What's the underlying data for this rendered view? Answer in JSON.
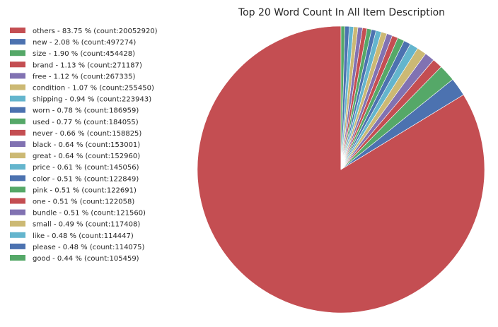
{
  "chart_data": {
    "type": "pie",
    "title": "Top 20 Word Count In All Item Description",
    "legend_position": "left",
    "start_angle_deg": 90,
    "direction": "counterclockwise",
    "slices": [
      {
        "label": "others - 83.75 % (count:20052920)",
        "percent": 83.75,
        "count": 20052920,
        "color": "#c44e52"
      },
      {
        "label": "new - 2.08 % (count:497274)",
        "percent": 2.08,
        "count": 497274,
        "color": "#4c72b0"
      },
      {
        "label": "size - 1.90 % (count:454428)",
        "percent": 1.9,
        "count": 454428,
        "color": "#55a868"
      },
      {
        "label": "brand - 1.13 % (count:271187)",
        "percent": 1.13,
        "count": 271187,
        "color": "#c44e52"
      },
      {
        "label": "free - 1.12 % (count:267335)",
        "percent": 1.12,
        "count": 267335,
        "color": "#8172b2"
      },
      {
        "label": "condition - 1.07 % (count:255450)",
        "percent": 1.07,
        "count": 255450,
        "color": "#ccb974"
      },
      {
        "label": "shipping - 0.94 % (count:223943)",
        "percent": 0.94,
        "count": 223943,
        "color": "#64b5cd"
      },
      {
        "label": "worn - 0.78 % (count:186959)",
        "percent": 0.78,
        "count": 186959,
        "color": "#4c72b0"
      },
      {
        "label": "used - 0.77 % (count:184055)",
        "percent": 0.77,
        "count": 184055,
        "color": "#55a868"
      },
      {
        "label": "never - 0.66 % (count:158825)",
        "percent": 0.66,
        "count": 158825,
        "color": "#c44e52"
      },
      {
        "label": "black - 0.64 % (count:153001)",
        "percent": 0.64,
        "count": 153001,
        "color": "#8172b2"
      },
      {
        "label": "great - 0.64 % (count:152960)",
        "percent": 0.64,
        "count": 152960,
        "color": "#ccb974"
      },
      {
        "label": "price - 0.61 % (count:145056)",
        "percent": 0.61,
        "count": 145056,
        "color": "#64b5cd"
      },
      {
        "label": "color - 0.51 % (count:122849)",
        "percent": 0.51,
        "count": 122849,
        "color": "#4c72b0"
      },
      {
        "label": "pink - 0.51 % (count:122691)",
        "percent": 0.51,
        "count": 122691,
        "color": "#55a868"
      },
      {
        "label": "one - 0.51 % (count:122058)",
        "percent": 0.51,
        "count": 122058,
        "color": "#c44e52"
      },
      {
        "label": "bundle - 0.51 % (count:121560)",
        "percent": 0.51,
        "count": 121560,
        "color": "#8172b2"
      },
      {
        "label": "small - 0.49 % (count:117408)",
        "percent": 0.49,
        "count": 117408,
        "color": "#ccb974"
      },
      {
        "label": "like - 0.48 % (count:114447)",
        "percent": 0.48,
        "count": 114447,
        "color": "#64b5cd"
      },
      {
        "label": "please - 0.48 % (count:114075)",
        "percent": 0.48,
        "count": 114075,
        "color": "#4c72b0"
      },
      {
        "label": "good - 0.44 % (count:105459)",
        "percent": 0.44,
        "count": 105459,
        "color": "#55a868"
      }
    ]
  }
}
